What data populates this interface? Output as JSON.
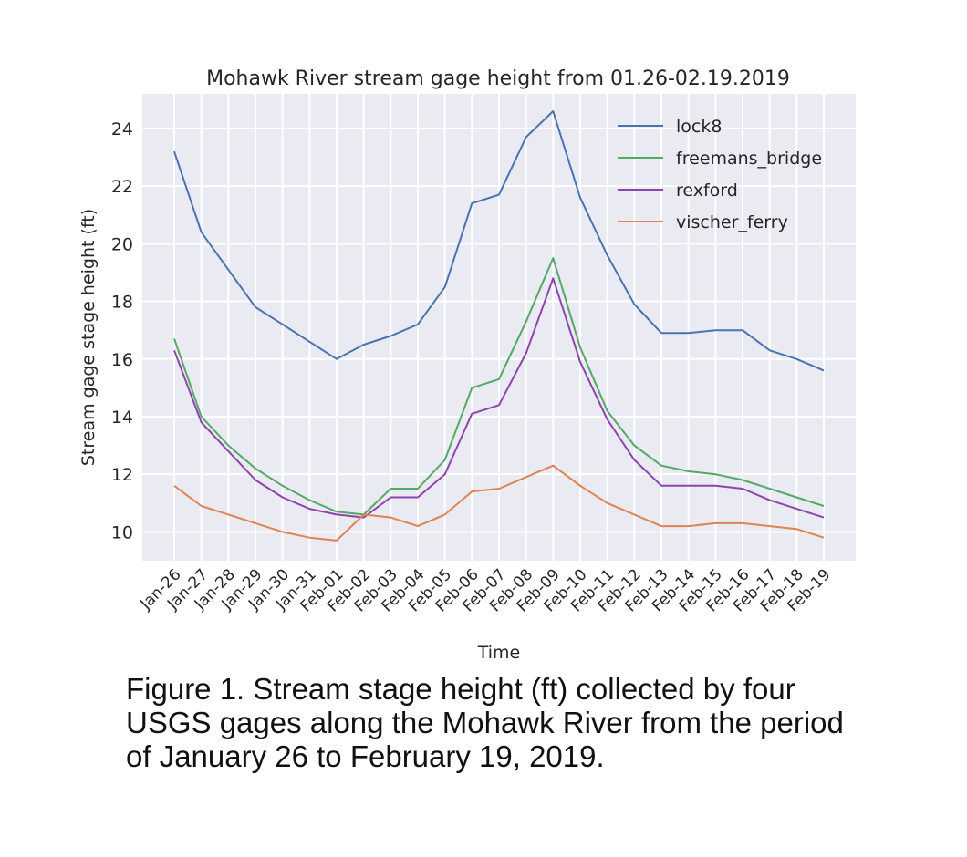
{
  "chart_data": {
    "type": "line",
    "title": "Mohawk River stream gage height from 01.26-02.19.2019",
    "xlabel": "Time",
    "ylabel": "Stream gage stage height (ft)",
    "ylim": [
      9,
      25.2
    ],
    "yticks": [
      10,
      12,
      14,
      16,
      18,
      20,
      22,
      24
    ],
    "grid": true,
    "legend_position": "top-right",
    "categories": [
      "Jan-26",
      "Jan-27",
      "Jan-28",
      "Jan-29",
      "Jan-30",
      "Jan-31",
      "Feb-01",
      "Feb-02",
      "Feb-03",
      "Feb-04",
      "Feb-05",
      "Feb-06",
      "Feb-07",
      "Feb-08",
      "Feb-09",
      "Feb-10",
      "Feb-11",
      "Feb-12",
      "Feb-13",
      "Feb-14",
      "Feb-15",
      "Feb-16",
      "Feb-17",
      "Feb-18",
      "Feb-19"
    ],
    "series": [
      {
        "name": "lock8",
        "color": "#4c72b0",
        "values": [
          23.2,
          20.4,
          19.1,
          17.8,
          17.2,
          16.6,
          16.0,
          16.5,
          16.8,
          17.2,
          18.5,
          21.4,
          21.7,
          23.7,
          24.6,
          21.6,
          19.6,
          17.9,
          16.9,
          16.9,
          17.0,
          17.0,
          16.3,
          16.0,
          15.6
        ]
      },
      {
        "name": "freemans_bridge",
        "color": "#55a868",
        "values": [
          16.7,
          14.0,
          13.0,
          12.2,
          11.6,
          11.1,
          10.7,
          10.6,
          11.5,
          11.5,
          12.5,
          15.0,
          15.3,
          17.3,
          19.5,
          16.4,
          14.2,
          13.0,
          12.3,
          12.1,
          12.0,
          11.8,
          11.5,
          11.2,
          10.9
        ]
      },
      {
        "name": "rexford",
        "color": "#8e44ad",
        "values": [
          16.3,
          13.8,
          12.8,
          11.8,
          11.2,
          10.8,
          10.6,
          10.5,
          11.2,
          11.2,
          12.0,
          14.1,
          14.4,
          16.2,
          18.8,
          15.9,
          13.9,
          12.5,
          11.6,
          11.6,
          11.6,
          11.5,
          11.1,
          10.8,
          10.5
        ]
      },
      {
        "name": "vischer_ferry",
        "color": "#dd8452",
        "values": [
          11.6,
          10.9,
          10.6,
          10.3,
          10.0,
          9.8,
          9.7,
          10.6,
          10.5,
          10.2,
          10.6,
          11.4,
          11.5,
          11.9,
          12.3,
          11.6,
          11.0,
          10.6,
          10.2,
          10.2,
          10.3,
          10.3,
          10.2,
          10.1,
          9.8
        ]
      }
    ]
  },
  "caption_lines": [
    "Figure 1. Stream stage height (ft) collected by four",
    "USGS gages along the Mohawk River from the period",
    "of January 26 to February 19, 2019."
  ]
}
